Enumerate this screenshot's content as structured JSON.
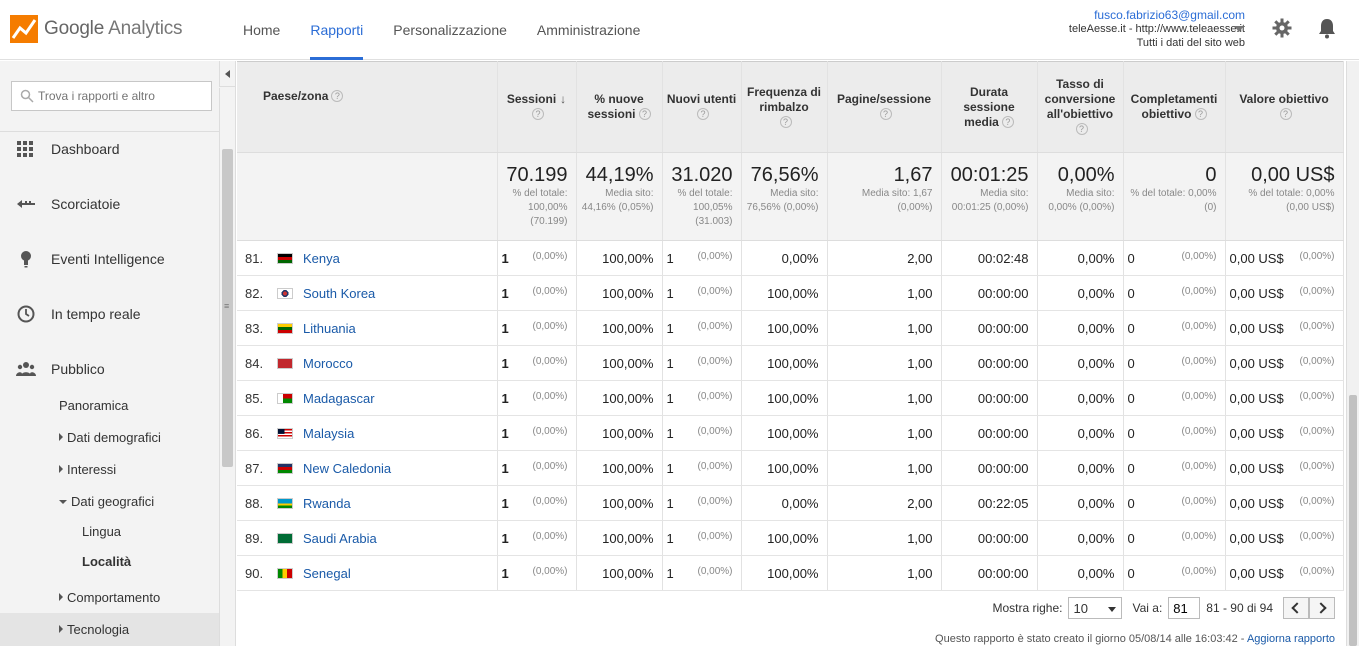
{
  "app": {
    "logo_google": "Google",
    "logo_product": "Analytics"
  },
  "topnav": [
    {
      "label": "Home",
      "active": false
    },
    {
      "label": "Rapporti",
      "active": true
    },
    {
      "label": "Personalizzazione",
      "active": false
    },
    {
      "label": "Amministrazione",
      "active": false
    }
  ],
  "account": {
    "email": "fusco.fabrizio63@gmail.com",
    "property": "teleAesse.it - http://www.teleaesse.it",
    "view": "Tutti i dati del sito web"
  },
  "sidebar": {
    "search_placeholder": "Trova i rapporti e altro",
    "main_items": [
      {
        "label": "Dashboard",
        "icon": "grid-icon"
      },
      {
        "label": "Scorciatoie",
        "icon": "shortcut-arrow-icon"
      },
      {
        "label": "Eventi Intelligence",
        "icon": "lightbulb-icon"
      },
      {
        "label": "In tempo reale",
        "icon": "clock-icon"
      },
      {
        "label": "Pubblico",
        "icon": "people-icon"
      }
    ],
    "pubblico_sub": {
      "panoramica": "Panoramica",
      "dati_demografici": "Dati demografici",
      "interessi": "Interessi",
      "dati_geografici": "Dati geografici",
      "lingua": "Lingua",
      "localita": "Località",
      "comportamento": "Comportamento",
      "tecnologia": "Tecnologia"
    }
  },
  "table": {
    "dimension_header": "Paese/zona",
    "columns": [
      "Sessioni",
      "% nuove sessioni",
      "Nuovi utenti",
      "Frequenza di rimbalzo",
      "Pagine/sessione",
      "Durata sessione media",
      "Tasso di conversione all'obiettivo",
      "Completamenti obiettivo",
      "Valore obiettivo"
    ],
    "totals": [
      {
        "value": "70.199",
        "sub": "% del totale: 100,00% (70.199)"
      },
      {
        "value": "44,19%",
        "sub": "Media sito: 44,16% (0,05%)"
      },
      {
        "value": "31.020",
        "sub": "% del totale: 100,05% (31.003)"
      },
      {
        "value": "76,56%",
        "sub": "Media sito: 76,56% (0,00%)"
      },
      {
        "value": "1,67",
        "sub": "Media sito: 1,67 (0,00%)"
      },
      {
        "value": "00:01:25",
        "sub": "Media sito: 00:01:25 (0,00%)"
      },
      {
        "value": "0,00%",
        "sub": "Media sito: 0,00% (0,00%)"
      },
      {
        "value": "0",
        "sub": "% del totale: 0,00% (0)"
      },
      {
        "value": "0,00 US$",
        "sub": "% del totale: 0,00% (0,00 US$)"
      }
    ],
    "rows": [
      {
        "rank": "81.",
        "country": "Kenya",
        "flag": "kenya-flag-icon",
        "sessions": "1",
        "sessions_pct": "(0,00%)",
        "new_sessions": "100,00%",
        "new_users": "1",
        "new_users_pct": "(0,00%)",
        "bounce": "0,00%",
        "pages": "2,00",
        "duration": "00:02:48",
        "conv": "0,00%",
        "goals": "0",
        "goals_pct": "(0,00%)",
        "value": "0,00 US$",
        "value_pct": "(0,00%)"
      },
      {
        "rank": "82.",
        "country": "South Korea",
        "flag": "south-korea-flag-icon",
        "sessions": "1",
        "sessions_pct": "(0,00%)",
        "new_sessions": "100,00%",
        "new_users": "1",
        "new_users_pct": "(0,00%)",
        "bounce": "100,00%",
        "pages": "1,00",
        "duration": "00:00:00",
        "conv": "0,00%",
        "goals": "0",
        "goals_pct": "(0,00%)",
        "value": "0,00 US$",
        "value_pct": "(0,00%)"
      },
      {
        "rank": "83.",
        "country": "Lithuania",
        "flag": "lithuania-flag-icon",
        "sessions": "1",
        "sessions_pct": "(0,00%)",
        "new_sessions": "100,00%",
        "new_users": "1",
        "new_users_pct": "(0,00%)",
        "bounce": "100,00%",
        "pages": "1,00",
        "duration": "00:00:00",
        "conv": "0,00%",
        "goals": "0",
        "goals_pct": "(0,00%)",
        "value": "0,00 US$",
        "value_pct": "(0,00%)"
      },
      {
        "rank": "84.",
        "country": "Morocco",
        "flag": "morocco-flag-icon",
        "sessions": "1",
        "sessions_pct": "(0,00%)",
        "new_sessions": "100,00%",
        "new_users": "1",
        "new_users_pct": "(0,00%)",
        "bounce": "100,00%",
        "pages": "1,00",
        "duration": "00:00:00",
        "conv": "0,00%",
        "goals": "0",
        "goals_pct": "(0,00%)",
        "value": "0,00 US$",
        "value_pct": "(0,00%)"
      },
      {
        "rank": "85.",
        "country": "Madagascar",
        "flag": "madagascar-flag-icon",
        "sessions": "1",
        "sessions_pct": "(0,00%)",
        "new_sessions": "100,00%",
        "new_users": "1",
        "new_users_pct": "(0,00%)",
        "bounce": "100,00%",
        "pages": "1,00",
        "duration": "00:00:00",
        "conv": "0,00%",
        "goals": "0",
        "goals_pct": "(0,00%)",
        "value": "0,00 US$",
        "value_pct": "(0,00%)"
      },
      {
        "rank": "86.",
        "country": "Malaysia",
        "flag": "malaysia-flag-icon",
        "sessions": "1",
        "sessions_pct": "(0,00%)",
        "new_sessions": "100,00%",
        "new_users": "1",
        "new_users_pct": "(0,00%)",
        "bounce": "100,00%",
        "pages": "1,00",
        "duration": "00:00:00",
        "conv": "0,00%",
        "goals": "0",
        "goals_pct": "(0,00%)",
        "value": "0,00 US$",
        "value_pct": "(0,00%)"
      },
      {
        "rank": "87.",
        "country": "New Caledonia",
        "flag": "new-caledonia-flag-icon",
        "sessions": "1",
        "sessions_pct": "(0,00%)",
        "new_sessions": "100,00%",
        "new_users": "1",
        "new_users_pct": "(0,00%)",
        "bounce": "100,00%",
        "pages": "1,00",
        "duration": "00:00:00",
        "conv": "0,00%",
        "goals": "0",
        "goals_pct": "(0,00%)",
        "value": "0,00 US$",
        "value_pct": "(0,00%)"
      },
      {
        "rank": "88.",
        "country": "Rwanda",
        "flag": "rwanda-flag-icon",
        "sessions": "1",
        "sessions_pct": "(0,00%)",
        "new_sessions": "100,00%",
        "new_users": "1",
        "new_users_pct": "(0,00%)",
        "bounce": "0,00%",
        "pages": "2,00",
        "duration": "00:22:05",
        "conv": "0,00%",
        "goals": "0",
        "goals_pct": "(0,00%)",
        "value": "0,00 US$",
        "value_pct": "(0,00%)"
      },
      {
        "rank": "89.",
        "country": "Saudi Arabia",
        "flag": "saudi-arabia-flag-icon",
        "sessions": "1",
        "sessions_pct": "(0,00%)",
        "new_sessions": "100,00%",
        "new_users": "1",
        "new_users_pct": "(0,00%)",
        "bounce": "100,00%",
        "pages": "1,00",
        "duration": "00:00:00",
        "conv": "0,00%",
        "goals": "0",
        "goals_pct": "(0,00%)",
        "value": "0,00 US$",
        "value_pct": "(0,00%)"
      },
      {
        "rank": "90.",
        "country": "Senegal",
        "flag": "senegal-flag-icon",
        "sessions": "1",
        "sessions_pct": "(0,00%)",
        "new_sessions": "100,00%",
        "new_users": "1",
        "new_users_pct": "(0,00%)",
        "bounce": "100,00%",
        "pages": "1,00",
        "duration": "00:00:00",
        "conv": "0,00%",
        "goals": "0",
        "goals_pct": "(0,00%)",
        "value": "0,00 US$",
        "value_pct": "(0,00%)"
      }
    ]
  },
  "pager": {
    "rows_label": "Mostra righe:",
    "rows_value": "10",
    "goto_label": "Vai a:",
    "goto_value": "81",
    "range": "81 - 90 di 94"
  },
  "footer": {
    "created": "Questo rapporto è stato creato il giorno 05/08/14 alle 16:03:42 -",
    "refresh": "Aggiorna rapporto"
  },
  "colors": {
    "accent": "#2b6dd6",
    "link": "#1a5aa8"
  }
}
